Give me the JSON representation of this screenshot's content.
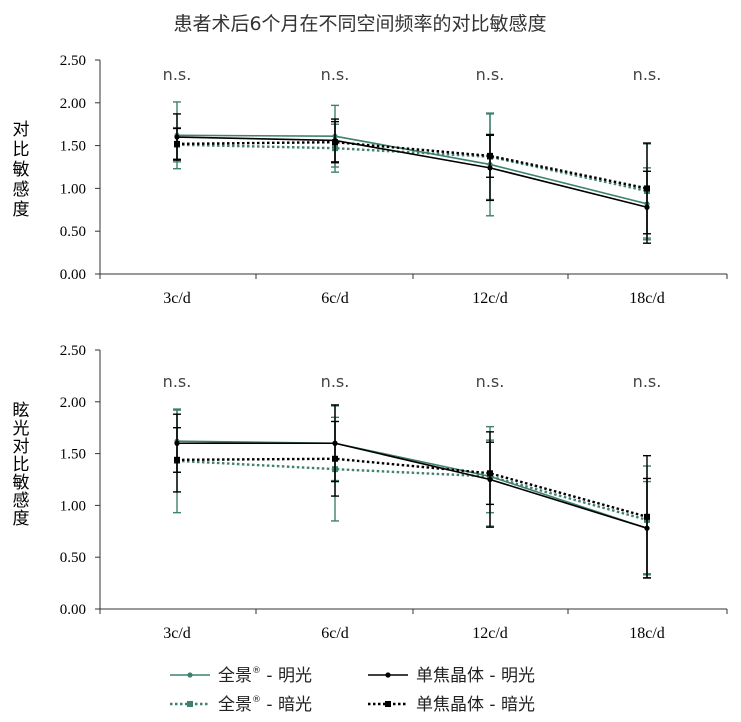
{
  "chart_data": {
    "type": "line",
    "title": "患者术后6个月在不同空间频率的对比敏感度",
    "categories": [
      "3c/d",
      "6c/d",
      "12c/d",
      "18c/d"
    ],
    "ylim": [
      0,
      2.5
    ],
    "yticks": [
      "0.00",
      "0.50",
      "1.00",
      "1.50",
      "2.00",
      "2.50"
    ],
    "colors": {
      "panorama": "#3f8070",
      "monofocal": "#000000"
    },
    "legend": {
      "pan_bright": {
        "name": "全景",
        "mark": "®",
        "rest": " - 明光"
      },
      "pan_dark": {
        "name": "全景",
        "mark": "®",
        "rest": " - 暗光"
      },
      "mono_bright": {
        "name": "单焦晶体 - 明光"
      },
      "mono_dark": {
        "name": "单焦晶体 - 暗光"
      }
    },
    "panels": [
      {
        "ylabel": "对比敏感度",
        "ylabel_chars": [
          "对",
          "比",
          "敏",
          "感",
          "度"
        ],
        "annotations": [
          "n.s.",
          "n.s.",
          "n.s.",
          "n.s."
        ],
        "series": [
          {
            "key": "pan_bright",
            "name": "全景® - 明光",
            "style": "solid",
            "color": "#3f8070",
            "marker": "circle",
            "values": [
              1.62,
              1.61,
              1.28,
              0.82
            ],
            "err": [
              0.39,
              0.36,
              0.6,
              0.42
            ]
          },
          {
            "key": "pan_dark",
            "name": "全景® - 暗光",
            "style": "dotted",
            "color": "#3f8070",
            "marker": "square",
            "values": [
              1.51,
              1.47,
              1.37,
              0.97
            ],
            "err": [
              0.2,
              0.28,
              0.5,
              0.55
            ]
          },
          {
            "key": "mono_bright",
            "name": "单焦晶体 - 明光",
            "style": "solid",
            "color": "#000000",
            "marker": "circle",
            "values": [
              1.6,
              1.56,
              1.24,
              0.78
            ],
            "err": [
              0.27,
              0.25,
              0.38,
              0.42
            ]
          },
          {
            "key": "mono_dark",
            "name": "单焦晶体 - 暗光",
            "style": "dotted",
            "color": "#000000",
            "marker": "square",
            "values": [
              1.52,
              1.54,
              1.38,
              1.0
            ],
            "err": [
              0.18,
              0.24,
              0.25,
              0.53
            ]
          }
        ]
      },
      {
        "ylabel": "眩光对比敏感度",
        "ylabel_chars": [
          "眩",
          "光",
          "对",
          "比",
          "敏",
          "感",
          "度"
        ],
        "annotations": [
          "n.s.",
          "n.s.",
          "n.s.",
          "n.s."
        ],
        "series": [
          {
            "key": "pan_bright",
            "name": "全景® - 明光",
            "style": "solid",
            "color": "#3f8070",
            "marker": "circle",
            "values": [
              1.62,
              1.6,
              1.28,
              0.78
            ],
            "err": [
              0.3,
              0.36,
              0.48,
              0.45
            ]
          },
          {
            "key": "pan_dark",
            "name": "全景® - 暗光",
            "style": "dotted",
            "color": "#3f8070",
            "marker": "square",
            "values": [
              1.43,
              1.35,
              1.28,
              0.86
            ],
            "err": [
              0.5,
              0.5,
              0.35,
              0.52
            ]
          },
          {
            "key": "mono_bright",
            "name": "单焦晶体 - 明光",
            "style": "solid",
            "color": "#000000",
            "marker": "circle",
            "values": [
              1.6,
              1.6,
              1.25,
              0.78
            ],
            "err": [
              0.28,
              0.37,
              0.46,
              0.48
            ]
          },
          {
            "key": "mono_dark",
            "name": "单焦晶体 - 暗光",
            "style": "dotted",
            "color": "#000000",
            "marker": "square",
            "values": [
              1.44,
              1.45,
              1.31,
              0.89
            ],
            "err": [
              0.31,
              0.36,
              0.3,
              0.59
            ]
          }
        ]
      }
    ]
  }
}
